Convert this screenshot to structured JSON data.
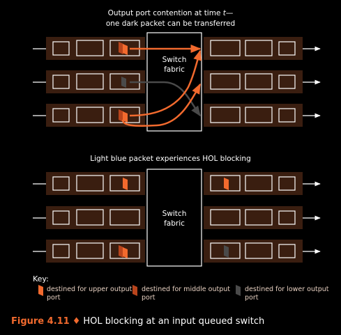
{
  "top_panel": {
    "title_line1": "Output port contention at time",
    "title_time_symbol": "t",
    "title_line1_suffix": "—",
    "title_line2": "one dark packet can be transferred",
    "fabric_line1": "Switch",
    "fabric_line2": "fabric"
  },
  "bottom_panel": {
    "title": "Light blue packet experiences HOL blocking",
    "fabric_line1": "Switch",
    "fabric_line2": "fabric"
  },
  "key": {
    "label": "Key:",
    "items": [
      {
        "text": "destined for upper output port",
        "color": "#f26a2e"
      },
      {
        "text": "destined for middle output port",
        "color": "#b8441c"
      },
      {
        "text": "destined for lower output port",
        "color": "#4a4a4a"
      }
    ]
  },
  "caption": {
    "figure_label": "Figure 4.11",
    "separator": "♦",
    "text": "HOL blocking at an input queued switch"
  },
  "colors": {
    "background": "#000000",
    "queue_bar": "#3a1e10",
    "slot_border": "#ffffff",
    "arrow_active": "#f26a2e",
    "arrow_blocked": "#4a4a4a",
    "text_accent": "#f26a2e"
  }
}
